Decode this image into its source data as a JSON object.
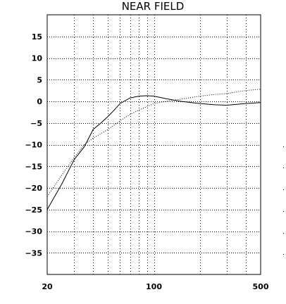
{
  "chart_data": {
    "type": "line",
    "title": "NEAR FIELD",
    "xscale": "log",
    "xlim": [
      20,
      500
    ],
    "ylim": [
      -40,
      20
    ],
    "x_tick_labels": [
      {
        "value": 20,
        "label": "20"
      },
      {
        "value": 100,
        "label": "100"
      },
      {
        "value": 500,
        "label": "500"
      }
    ],
    "y_tick_values": [
      15,
      10,
      5,
      0,
      -5,
      -10,
      -15,
      -20,
      -25,
      -30,
      -35
    ],
    "y_tick_labels": [
      "15",
      "10",
      "5",
      "0",
      "−5",
      "−10",
      "−15",
      "−20",
      "−25",
      "−30",
      "−35"
    ],
    "grid": true,
    "series": [
      {
        "style": "solid",
        "x": [
          20,
          25,
          30,
          35,
          40,
          45,
          50,
          55,
          60,
          70,
          80,
          90,
          100,
          120,
          150,
          200,
          250,
          300,
          400,
          500
        ],
        "y": [
          -25,
          -19,
          -13.5,
          -10.5,
          -6.5,
          -5,
          -3.5,
          -2,
          -0.5,
          0.8,
          1.2,
          1.3,
          1.2,
          0.6,
          0,
          -0.5,
          -0.8,
          -0.9,
          -0.5,
          -0.3
        ]
      },
      {
        "style": "dotted",
        "x": [
          20,
          25,
          30,
          35,
          40,
          50,
          60,
          70,
          80,
          100,
          120,
          150,
          200,
          250,
          300,
          400,
          500
        ],
        "y": [
          -22,
          -17,
          -13,
          -10,
          -8.5,
          -6.5,
          -4.5,
          -3,
          -2,
          -0.5,
          0,
          0.5,
          1.2,
          1.6,
          1.8,
          2.5,
          2.8
        ]
      }
    ]
  }
}
